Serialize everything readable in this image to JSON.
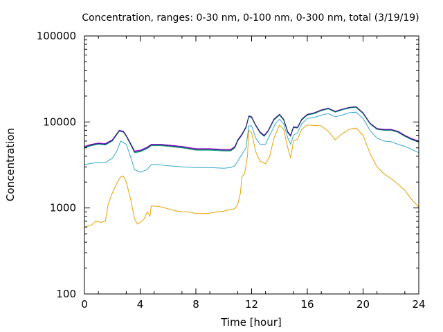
{
  "chart_data": {
    "type": "line",
    "title": "Concentration, ranges: 0-30 nm, 0-100 nm, 0-300 nm, total (3/19/19)",
    "xlabel": "Time [hour]",
    "ylabel": "Concentration",
    "xlim": [
      0,
      24
    ],
    "ylim": [
      100,
      100000
    ],
    "yscale": "log",
    "xticks": [
      0,
      4,
      8,
      12,
      16,
      20,
      24
    ],
    "xtick_labels": [
      "0",
      "4",
      "8",
      "12",
      "16",
      "20",
      "24"
    ],
    "yticks": [
      100,
      1000,
      10000,
      100000
    ],
    "ytick_labels": [
      "100",
      "1000",
      "10000",
      "100000"
    ],
    "grid": false,
    "legend": "none",
    "series": [
      {
        "color": "#e6a000",
        "points": [
          [
            0,
            600
          ],
          [
            0.5,
            630
          ],
          [
            0.8,
            700
          ],
          [
            1.2,
            680
          ],
          [
            1.5,
            700
          ],
          [
            1.7,
            1100
          ],
          [
            2.0,
            1500
          ],
          [
            2.3,
            1900
          ],
          [
            2.6,
            2300
          ],
          [
            2.8,
            2350
          ],
          [
            3.0,
            2000
          ],
          [
            3.3,
            1300
          ],
          [
            3.6,
            750
          ],
          [
            3.8,
            650
          ],
          [
            4.0,
            680
          ],
          [
            4.3,
            750
          ],
          [
            4.5,
            900
          ],
          [
            4.7,
            800
          ],
          [
            4.8,
            1050
          ],
          [
            5.2,
            1050
          ],
          [
            5.6,
            1020
          ],
          [
            6.0,
            980
          ],
          [
            6.5,
            930
          ],
          [
            7.0,
            900
          ],
          [
            7.5,
            900
          ],
          [
            8.0,
            860
          ],
          [
            8.5,
            860
          ],
          [
            9.0,
            870
          ],
          [
            9.5,
            900
          ],
          [
            10.0,
            920
          ],
          [
            10.5,
            960
          ],
          [
            10.8,
            980
          ],
          [
            11.0,
            1100
          ],
          [
            11.2,
            1500
          ],
          [
            11.3,
            2300
          ],
          [
            11.5,
            2500
          ],
          [
            11.7,
            4000
          ],
          [
            11.8,
            8000
          ],
          [
            12.0,
            7500
          ],
          [
            12.3,
            4500
          ],
          [
            12.6,
            3500
          ],
          [
            13.0,
            3250
          ],
          [
            13.3,
            4000
          ],
          [
            13.6,
            6500
          ],
          [
            14.0,
            9200
          ],
          [
            14.3,
            8200
          ],
          [
            14.6,
            5000
          ],
          [
            14.8,
            3800
          ],
          [
            15.0,
            6000
          ],
          [
            15.3,
            6300
          ],
          [
            15.6,
            8200
          ],
          [
            16.0,
            9200
          ],
          [
            16.5,
            9100
          ],
          [
            17.0,
            9000
          ],
          [
            17.5,
            7800
          ],
          [
            18.0,
            6200
          ],
          [
            18.5,
            7300
          ],
          [
            19.0,
            8200
          ],
          [
            19.5,
            8500
          ],
          [
            20.0,
            7000
          ],
          [
            20.5,
            4300
          ],
          [
            21.0,
            3000
          ],
          [
            21.5,
            2500
          ],
          [
            22.0,
            2200
          ],
          [
            22.5,
            1900
          ],
          [
            23.0,
            1600
          ],
          [
            23.5,
            1250
          ],
          [
            24.0,
            1020
          ]
        ]
      },
      {
        "color": "#35a7cc",
        "points": [
          [
            0,
            3200
          ],
          [
            0.5,
            3300
          ],
          [
            1.0,
            3400
          ],
          [
            1.5,
            3350
          ],
          [
            2.0,
            3800
          ],
          [
            2.3,
            4500
          ],
          [
            2.6,
            6000
          ],
          [
            3.0,
            5500
          ],
          [
            3.3,
            4000
          ],
          [
            3.6,
            2800
          ],
          [
            4.0,
            2600
          ],
          [
            4.5,
            2800
          ],
          [
            4.8,
            3200
          ],
          [
            5.2,
            3200
          ],
          [
            6.0,
            3100
          ],
          [
            7.0,
            3000
          ],
          [
            8.0,
            2950
          ],
          [
            9.0,
            2950
          ],
          [
            10.0,
            2900
          ],
          [
            10.5,
            2950
          ],
          [
            10.8,
            3100
          ],
          [
            11.0,
            3500
          ],
          [
            11.3,
            4200
          ],
          [
            11.6,
            5000
          ],
          [
            11.8,
            9000
          ],
          [
            12.0,
            9000
          ],
          [
            12.3,
            6500
          ],
          [
            12.6,
            5500
          ],
          [
            13.0,
            5500
          ],
          [
            13.3,
            7000
          ],
          [
            13.7,
            9500
          ],
          [
            14.0,
            10800
          ],
          [
            14.3,
            9500
          ],
          [
            14.6,
            6500
          ],
          [
            14.8,
            5500
          ],
          [
            15.0,
            7000
          ],
          [
            15.3,
            7500
          ],
          [
            15.6,
            9500
          ],
          [
            16.0,
            11000
          ],
          [
            16.5,
            11300
          ],
          [
            17.0,
            12000
          ],
          [
            17.5,
            12500
          ],
          [
            18.0,
            11500
          ],
          [
            18.5,
            12000
          ],
          [
            19.0,
            12800
          ],
          [
            19.5,
            13000
          ],
          [
            20.0,
            11000
          ],
          [
            20.5,
            8000
          ],
          [
            21.0,
            6500
          ],
          [
            21.5,
            6000
          ],
          [
            22.0,
            5900
          ],
          [
            22.5,
            5500
          ],
          [
            23.0,
            5200
          ],
          [
            23.5,
            4800
          ],
          [
            24.0,
            4400
          ]
        ]
      },
      {
        "color": "#009e73",
        "points": [
          [
            0,
            5000
          ],
          [
            0.5,
            5300
          ],
          [
            1.0,
            5500
          ],
          [
            1.5,
            5400
          ],
          [
            2.0,
            6000
          ],
          [
            2.5,
            7800
          ],
          [
            2.8,
            7600
          ],
          [
            3.0,
            6800
          ],
          [
            3.3,
            5500
          ],
          [
            3.6,
            4400
          ],
          [
            4.0,
            4500
          ],
          [
            4.5,
            4900
          ],
          [
            4.8,
            5300
          ],
          [
            5.5,
            5300
          ],
          [
            6.0,
            5200
          ],
          [
            7.0,
            5000
          ],
          [
            8.0,
            4700
          ],
          [
            9.0,
            4700
          ],
          [
            10.0,
            4600
          ],
          [
            10.5,
            4600
          ],
          [
            10.8,
            5000
          ],
          [
            11.0,
            6000
          ],
          [
            11.3,
            7000
          ],
          [
            11.6,
            8500
          ],
          [
            11.8,
            11500
          ],
          [
            12.0,
            11200
          ],
          [
            12.3,
            9000
          ],
          [
            12.6,
            7500
          ],
          [
            12.9,
            6800
          ],
          [
            13.2,
            7800
          ],
          [
            13.6,
            10500
          ],
          [
            14.0,
            12000
          ],
          [
            14.3,
            10500
          ],
          [
            14.6,
            7500
          ],
          [
            14.8,
            6800
          ],
          [
            15.0,
            8600
          ],
          [
            15.3,
            8500
          ],
          [
            15.6,
            10500
          ],
          [
            16.0,
            12000
          ],
          [
            16.5,
            12500
          ],
          [
            17.0,
            13500
          ],
          [
            17.5,
            14200
          ],
          [
            18.0,
            13000
          ],
          [
            18.5,
            13800
          ],
          [
            19.0,
            14500
          ],
          [
            19.5,
            14800
          ],
          [
            20.0,
            12500
          ],
          [
            20.5,
            9500
          ],
          [
            21.0,
            8200
          ],
          [
            21.5,
            8000
          ],
          [
            22.0,
            8000
          ],
          [
            22.5,
            7600
          ],
          [
            23.0,
            6800
          ],
          [
            23.5,
            6200
          ],
          [
            24.0,
            5800
          ]
        ]
      },
      {
        "color": "#9400d3",
        "points": [
          [
            0,
            5200
          ],
          [
            0.5,
            5500
          ],
          [
            1.0,
            5700
          ],
          [
            1.5,
            5600
          ],
          [
            2.0,
            6200
          ],
          [
            2.5,
            8000
          ],
          [
            2.8,
            7800
          ],
          [
            3.0,
            7000
          ],
          [
            3.3,
            5700
          ],
          [
            3.6,
            4600
          ],
          [
            4.0,
            4700
          ],
          [
            4.5,
            5100
          ],
          [
            4.8,
            5500
          ],
          [
            5.5,
            5500
          ],
          [
            6.0,
            5400
          ],
          [
            7.0,
            5200
          ],
          [
            8.0,
            4900
          ],
          [
            9.0,
            4900
          ],
          [
            10.0,
            4800
          ],
          [
            10.5,
            4800
          ],
          [
            10.8,
            5200
          ],
          [
            11.0,
            6200
          ],
          [
            11.3,
            7200
          ],
          [
            11.6,
            8800
          ],
          [
            11.8,
            11800
          ],
          [
            12.0,
            11500
          ],
          [
            12.3,
            9200
          ],
          [
            12.6,
            7700
          ],
          [
            12.9,
            7000
          ],
          [
            13.2,
            8000
          ],
          [
            13.6,
            10800
          ],
          [
            14.0,
            12300
          ],
          [
            14.3,
            10800
          ],
          [
            14.6,
            7700
          ],
          [
            14.8,
            7000
          ],
          [
            15.0,
            8800
          ],
          [
            15.3,
            8700
          ],
          [
            15.6,
            10800
          ],
          [
            16.0,
            12300
          ],
          [
            16.5,
            12800
          ],
          [
            17.0,
            13800
          ],
          [
            17.5,
            14500
          ],
          [
            18.0,
            13300
          ],
          [
            18.5,
            14100
          ],
          [
            19.0,
            14800
          ],
          [
            19.5,
            15100
          ],
          [
            20.0,
            12800
          ],
          [
            20.5,
            9700
          ],
          [
            21.0,
            8400
          ],
          [
            21.5,
            8200
          ],
          [
            22.0,
            8200
          ],
          [
            22.5,
            7800
          ],
          [
            23.0,
            7000
          ],
          [
            23.5,
            6400
          ],
          [
            24.0,
            6000
          ]
        ]
      },
      {
        "color": "#1a2a6c",
        "points": [
          [
            0,
            5100
          ],
          [
            0.5,
            5400
          ],
          [
            1.0,
            5600
          ],
          [
            1.5,
            5500
          ],
          [
            2.0,
            6100
          ],
          [
            2.5,
            7900
          ],
          [
            2.8,
            7700
          ],
          [
            3.0,
            6900
          ],
          [
            3.3,
            5600
          ],
          [
            3.6,
            4500
          ],
          [
            4.0,
            4600
          ],
          [
            4.5,
            5000
          ],
          [
            4.8,
            5400
          ],
          [
            5.5,
            5400
          ],
          [
            6.0,
            5300
          ],
          [
            7.0,
            5100
          ],
          [
            8.0,
            4800
          ],
          [
            9.0,
            4800
          ],
          [
            10.0,
            4700
          ],
          [
            10.5,
            4700
          ],
          [
            10.8,
            5100
          ],
          [
            11.0,
            6100
          ],
          [
            11.3,
            7100
          ],
          [
            11.6,
            8700
          ],
          [
            11.8,
            11700
          ],
          [
            12.0,
            11400
          ],
          [
            12.3,
            9100
          ],
          [
            12.6,
            7600
          ],
          [
            12.9,
            6900
          ],
          [
            13.2,
            7900
          ],
          [
            13.6,
            10700
          ],
          [
            14.0,
            12200
          ],
          [
            14.3,
            10700
          ],
          [
            14.6,
            7600
          ],
          [
            14.8,
            6900
          ],
          [
            15.0,
            8700
          ],
          [
            15.3,
            8600
          ],
          [
            15.6,
            10700
          ],
          [
            16.0,
            12200
          ],
          [
            16.5,
            12700
          ],
          [
            17.0,
            13700
          ],
          [
            17.5,
            14400
          ],
          [
            18.0,
            13200
          ],
          [
            18.5,
            14000
          ],
          [
            19.0,
            14700
          ],
          [
            19.5,
            15000
          ],
          [
            20.0,
            12700
          ],
          [
            20.5,
            9600
          ],
          [
            21.0,
            8300
          ],
          [
            21.5,
            8100
          ],
          [
            22.0,
            8100
          ],
          [
            22.5,
            7700
          ],
          [
            23.0,
            6900
          ],
          [
            23.5,
            6300
          ],
          [
            24.0,
            5900
          ]
        ]
      }
    ]
  }
}
